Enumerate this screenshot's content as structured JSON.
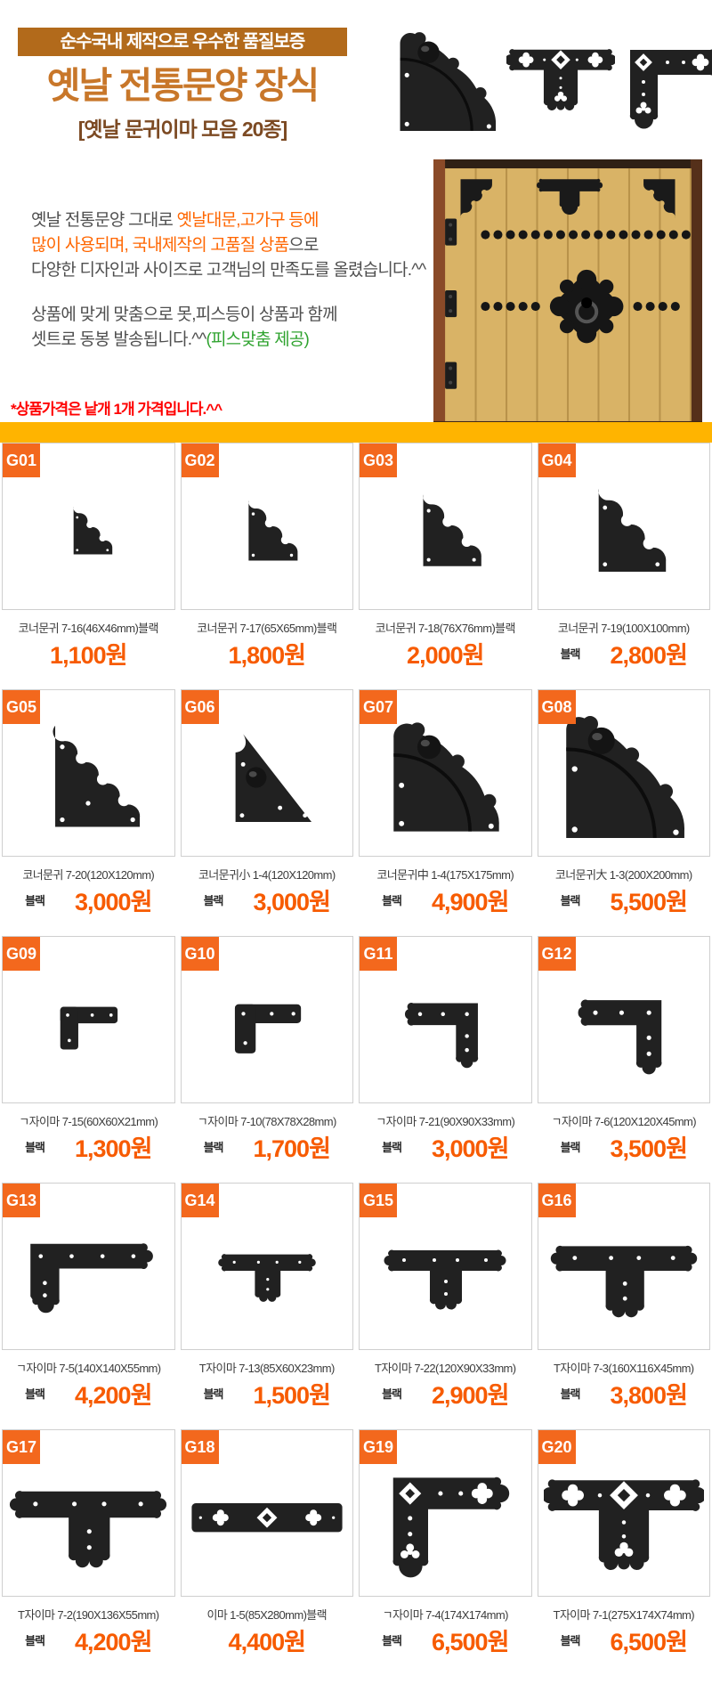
{
  "header": {
    "quality_badge": "순수국내 제작으로 우수한 품질보증",
    "title": "옛날 전통문양 장식",
    "subtitle": "[옛날 문귀이마 모음 20종]"
  },
  "description": {
    "line1_gray": "옛날 전통문양 그대로 ",
    "line1_orange": "옛날대문,고가구 등에",
    "line2_orange": "많이 사용되며, 국내제작의 고품질 상품",
    "line2_gray": "으로",
    "line3": "다양한 디자인과 사이즈로 고객님의 만족도를 올렸습니다.^^",
    "line4": "상품에 맞게 맞춤으로 못,피스등이 상품과 함께",
    "line5_gray": "셋트로 동봉 발송됩니다.^^",
    "line5_green": "(피스맞춤 제공)"
  },
  "notice": "*상품가격은 낱개 1개 가격입니다.^^",
  "colors": {
    "badge_bg": "#b26a1b",
    "title": "#c8772a",
    "subtitle": "#7c4a23",
    "divider": "#ffb400",
    "code_badge": "#f3681d",
    "price": "#f75b00",
    "notice": "#ff0000",
    "accent_orange": "#ff6600",
    "accent_green": "#2fa32f"
  },
  "products": [
    {
      "id": "G01",
      "name": "코너문귀 7-16(46X46mm)블랙",
      "label": "",
      "price": "1,100원",
      "icon": "corner-scallop",
      "size": 68
    },
    {
      "id": "G02",
      "name": "코너문귀 7-17(65X65mm)블랙",
      "label": "",
      "price": "1,800원",
      "icon": "corner-scallop",
      "size": 86
    },
    {
      "id": "G03",
      "name": "코너문귀 7-18(76X76mm)블랙",
      "label": "",
      "price": "2,000원",
      "icon": "corner-scallop",
      "size": 102
    },
    {
      "id": "G04",
      "name": "코너문귀 7-19(100X100mm)",
      "label": "블랙",
      "price": "2,800원",
      "icon": "corner-scallop",
      "size": 118
    },
    {
      "id": "G05",
      "name": "코너문귀 7-20(120X120mm)",
      "label": "블랙",
      "price": "3,000원",
      "icon": "corner-scallop-3curl",
      "size": 132
    },
    {
      "id": "G06",
      "name": "코너문귀小 1-4(120X120mm)",
      "label": "블랙",
      "price": "3,000원",
      "icon": "corner-triangle-dome",
      "size": 122
    },
    {
      "id": "G07",
      "name": "코너문귀中 1-4(175X175mm)",
      "label": "블랙",
      "price": "4,900원",
      "icon": "corner-round-dome",
      "size": 148
    },
    {
      "id": "G08",
      "name": "코너문귀大 1-3(200X200mm)",
      "label": "블랙",
      "price": "5,500원",
      "icon": "corner-round-dome-large",
      "size": 158
    },
    {
      "id": "G09",
      "name": "ㄱ자이마 7-15(60X60X21mm)",
      "label": "블랙",
      "price": "1,300원",
      "icon": "l-bracket",
      "size": 92
    },
    {
      "id": "G10",
      "name": "ㄱ자이마 7-10(78X78X28mm)",
      "label": "블랙",
      "price": "1,700원",
      "icon": "l-bracket",
      "size": 106
    },
    {
      "id": "G11",
      "name": "ㄱ자이마 7-21(90X90X33mm)",
      "label": "블랙",
      "price": "3,000원",
      "icon": "l-bracket-scallop",
      "size": 112
    },
    {
      "id": "G12",
      "name": "ㄱ자이마 7-6(120X120X45mm)",
      "label": "블랙",
      "price": "3,500원",
      "icon": "l-bracket-scallop",
      "size": 128
    },
    {
      "id": "G13",
      "name": "ㄱ자이마 7-5(140X140X55mm)",
      "label": "블랙",
      "price": "4,200원",
      "icon": "l-bracket-big",
      "size": 162
    },
    {
      "id": "G14",
      "name": "T자이마 7-13(85X60X23mm)",
      "label": "블랙",
      "price": "1,500원",
      "icon": "t-bracket-scallop",
      "size": 112
    },
    {
      "id": "G15",
      "name": "T자이마 7-22(120X90X33mm)",
      "label": "블랙",
      "price": "2,900원",
      "icon": "t-bracket-scallop",
      "size": 140
    },
    {
      "id": "G16",
      "name": "T자이마 7-3(160X116X45mm)",
      "label": "블랙",
      "price": "3,800원",
      "icon": "t-bracket-scallop",
      "size": 168
    },
    {
      "id": "G17",
      "name": "T자이마 7-2(190X136X55mm)",
      "label": "블랙",
      "price": "4,200원",
      "icon": "t-bracket-scallop",
      "size": 180
    },
    {
      "id": "G18",
      "name": "이마 1-5(85X280mm)블랙",
      "label": "",
      "price": "4,400원",
      "icon": "strip-ornate",
      "size": 180
    },
    {
      "id": "G19",
      "name": "ㄱ자이마 7-4(174X174mm)",
      "label": "블랙",
      "price": "6,500원",
      "icon": "l-bracket-ornate",
      "size": 152
    },
    {
      "id": "G20",
      "name": "T자이마 7-1(275X174X74mm)",
      "label": "블랙",
      "price": "6,500원",
      "icon": "t-bracket-ornate",
      "size": 180
    }
  ]
}
